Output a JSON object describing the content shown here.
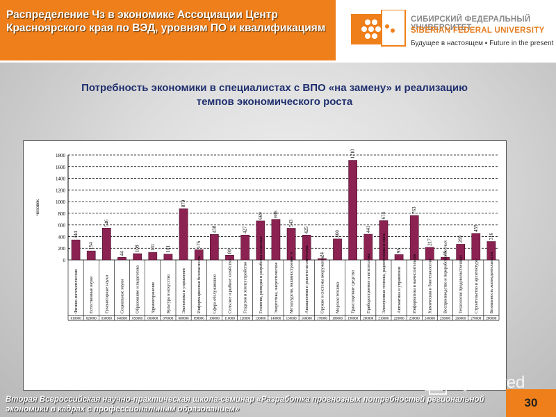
{
  "header": {
    "title": "Распределение Чз в экономике Ассоциации Центр Красноярского края по ВЭД, уровням ПО и квалификациям",
    "logo": {
      "line1": "СИБИРСКИЙ ФЕДЕРАЛЬНЫЙ УНИВЕРСИТЕТ",
      "line2": "SIBERIAN FEDERAL UNIVERSITY",
      "line3": "Будущее в настоящем ▪ Future in the present"
    }
  },
  "subtitle": "Потребность экономики в специалистах с ВПО «на замену» и реализацию темпов экономического роста",
  "footer": {
    "text": "Вторая Всероссийская научно-практическая школа-семинар «Разработка прогнозных потребностей региональной экономики в кадрах с профессиональным образованием»",
    "page_number": "30",
    "watermark": "MyShared"
  },
  "colors": {
    "accent": "#ef7f1a",
    "bar": "#8b2252",
    "subtitle": "#1f2f6e"
  },
  "chart_data": {
    "type": "bar",
    "ylabel": "человек",
    "ylim": [
      0,
      1800
    ],
    "yticks": [
      0,
      200,
      400,
      600,
      800,
      1000,
      1200,
      1400,
      1600,
      1800
    ],
    "grid": "dashed",
    "categories": [
      "Физико-математические",
      "Естественные науки",
      "Гуманитарные науки",
      "Социальные науки",
      "Образование и педагогика",
      "Здравоохранение",
      "Культура и искусство",
      "Экономика и управление",
      "Информационная безопасность",
      "Сфера обслуживания",
      "Сельское и рыбное хозяйство",
      "Геодезия и землеустройство",
      "Геология, разведка и разработка полезных",
      "Энергетика, энергетическое",
      "Металлургия, машиностроение и",
      "Авиационная и ракетно-космическая",
      "Оружие и системы вооружения",
      "Морская техника",
      "Транспортные средства",
      "Приборостроение и оптотехника",
      "Электронная техника, радиотехника и связь",
      "Автоматика и управление",
      "Информатика и вычислительная",
      "Химическая и биотехнологии",
      "Воспроизводство и переработка лесных",
      "Технология продовольственных",
      "Строительство и архитектура",
      "Безопасность жизнедеятельности"
    ],
    "codes": [
      "010000",
      "020000",
      "030000",
      "040000",
      "050000",
      "060000",
      "070000",
      "080000",
      "090000",
      "100000",
      "110000",
      "120000",
      "130000",
      "140000",
      "150000",
      "160000",
      "170000",
      "180000",
      "190000",
      "200000",
      "210000",
      "220000",
      "230000",
      "240000",
      "250000",
      "260000",
      "270000",
      "280000"
    ],
    "values": [
      344,
      154,
      546,
      44,
      108,
      131,
      101,
      879,
      176,
      438,
      80,
      427,
      669,
      696,
      543,
      425,
      24,
      360,
      1710,
      441,
      674,
      93,
      763,
      217,
      46,
      269,
      455,
      316
    ]
  }
}
